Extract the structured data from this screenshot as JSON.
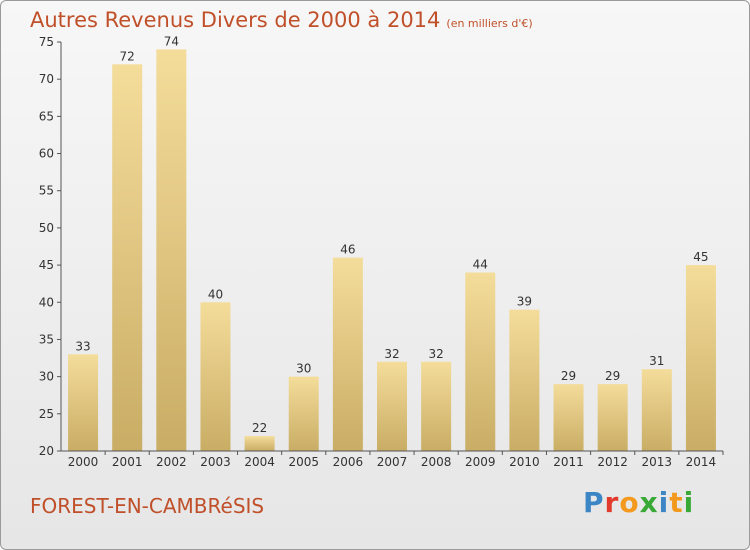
{
  "header": {
    "title": "Autres Revenus Divers de 2000 à 2014",
    "subtitle": "(en milliers d'€)"
  },
  "footer": {
    "location": "FOREST-EN-CAMBRéSIS",
    "logo": "Proxiti"
  },
  "colors": {
    "title": "#c0502a",
    "bar_light": "#f4dc9a",
    "bar_dark": "#c9ad65",
    "logo_letters": [
      "#3d86c6",
      "#e23b2e",
      "#f39a1e",
      "#39a935",
      "#3d86c6",
      "#f39a1e",
      "#39a935"
    ]
  },
  "chart_data": {
    "type": "bar",
    "categories": [
      "2000",
      "2001",
      "2002",
      "2003",
      "2004",
      "2005",
      "2006",
      "2007",
      "2008",
      "2009",
      "2010",
      "2011",
      "2012",
      "2013",
      "2014"
    ],
    "values": [
      33,
      72,
      74,
      40,
      22,
      30,
      46,
      32,
      32,
      44,
      39,
      29,
      29,
      31,
      45
    ],
    "ylim": [
      20,
      75
    ],
    "yticks": [
      20,
      25,
      30,
      35,
      40,
      45,
      50,
      55,
      60,
      65,
      70,
      75
    ],
    "grid": false,
    "legend": "none"
  }
}
